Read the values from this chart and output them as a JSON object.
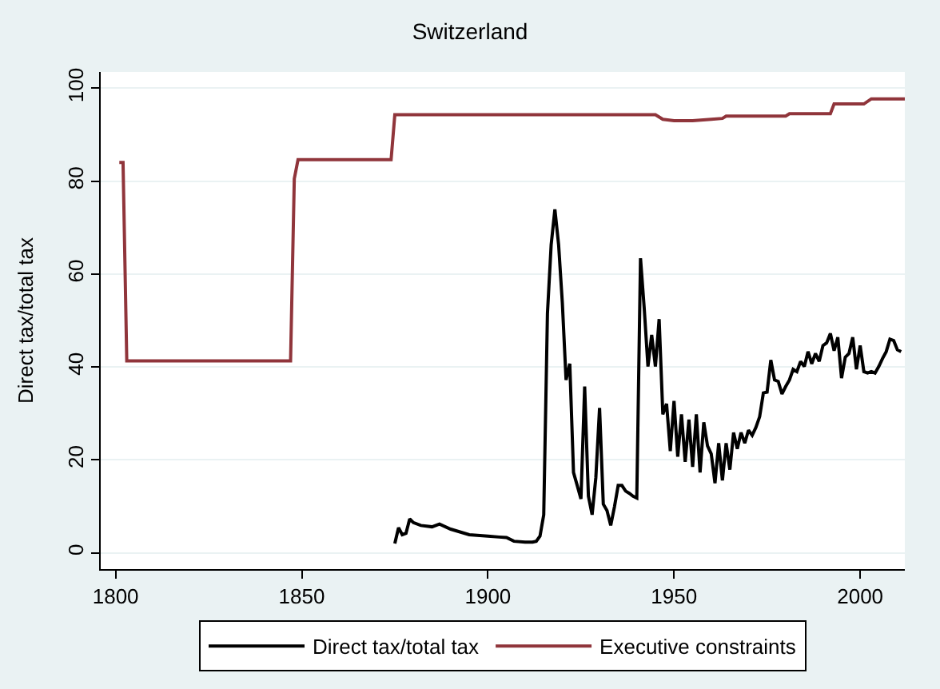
{
  "chart_data": {
    "type": "line",
    "title": "Switzerland",
    "ylabel": "Direct tax/total tax",
    "xlim": [
      1796,
      2012
    ],
    "xticks": [
      1800,
      1850,
      1900,
      1950,
      2000
    ],
    "ylim": [
      -3.5,
      103.5
    ],
    "yticks": [
      0,
      20,
      40,
      60,
      80,
      100
    ],
    "grid": "y",
    "legend": "bottom",
    "series": [
      {
        "name": "Direct tax/total tax",
        "color": "#000000",
        "x": [
          1875,
          1876,
          1877,
          1878,
          1879,
          1880,
          1882,
          1885,
          1887,
          1890,
          1895,
          1900,
          1903,
          1905,
          1907,
          1910,
          1912,
          1913,
          1914,
          1915,
          1916,
          1917,
          1918,
          1919,
          1920,
          1921,
          1922,
          1923,
          1924,
          1925,
          1926,
          1927,
          1928,
          1929,
          1930,
          1931,
          1932,
          1933,
          1934,
          1935,
          1936,
          1937,
          1938,
          1939,
          1940,
          1941,
          1942,
          1943,
          1944,
          1945,
          1946,
          1947,
          1948,
          1949,
          1950,
          1951,
          1952,
          1953,
          1954,
          1955,
          1956,
          1957,
          1958,
          1959,
          1960,
          1961,
          1962,
          1963,
          1964,
          1965,
          1966,
          1967,
          1968,
          1969,
          1970,
          1971,
          1972,
          1973,
          1974,
          1975,
          1976,
          1977,
          1978,
          1979,
          1980,
          1981,
          1982,
          1983,
          1984,
          1985,
          1986,
          1987,
          1988,
          1989,
          1990,
          1991,
          1992,
          1993,
          1994,
          1995,
          1996,
          1997,
          1998,
          1999,
          2000,
          2001,
          2002,
          2003,
          2004,
          2005,
          2006,
          2007,
          2008,
          2009,
          2010,
          2011
        ],
        "values": [
          2,
          5.4,
          3.9,
          4.2,
          7.3,
          6.5,
          5.9,
          5.6,
          6.2,
          5.1,
          3.9,
          3.6,
          3.4,
          3.3,
          2.5,
          2.3,
          2.3,
          2.5,
          3.6,
          8.2,
          51.5,
          66.3,
          73.9,
          66.3,
          53.8,
          37.2,
          40.7,
          17.3,
          14.5,
          11.6,
          35.8,
          12.2,
          8.2,
          16.2,
          31.2,
          10.5,
          9.1,
          5.9,
          9.9,
          14.5,
          14.5,
          13.3,
          12.8,
          12.2,
          11.8,
          63.4,
          52.6,
          40.1,
          46.9,
          40.1,
          50.3,
          29.8,
          32.1,
          21.9,
          32.7,
          20.7,
          29.8,
          19.6,
          28.7,
          18.5,
          29.8,
          17.3,
          28.1,
          23.0,
          21.3,
          15,
          23.6,
          15.6,
          23.6,
          17.9,
          25.9,
          22.4,
          25.9,
          23.6,
          26.4,
          25.3,
          27.0,
          29.3,
          34.4,
          34.6,
          41.5,
          37.2,
          36.9,
          34.2,
          35.8,
          37.2,
          39.5,
          39.0,
          41.2,
          40.1,
          43.3,
          40.7,
          42.9,
          41.2,
          44.6,
          45.2,
          47.2,
          43.5,
          46.4,
          37.6,
          42.1,
          42.9,
          46.4,
          39.5,
          44.6,
          39.0,
          38.7,
          39.0,
          38.7,
          40.1,
          41.8,
          43.3,
          46.0,
          45.7,
          43.7,
          43.3
        ]
      },
      {
        "name": "Executive constraints",
        "color": "#90353b",
        "x": [
          1801,
          1802,
          1803,
          1847,
          1848,
          1849,
          1874,
          1875,
          1945,
          1947,
          1950,
          1955,
          1960,
          1963,
          1964,
          1980,
          1981,
          1992,
          1993,
          2001,
          2003,
          2012
        ],
        "values": [
          84,
          84,
          41.3,
          41.3,
          80.5,
          84.6,
          84.6,
          94.3,
          94.3,
          93.3,
          93,
          93,
          93.3,
          93.5,
          94,
          94,
          94.5,
          94.5,
          96.6,
          96.6,
          97.7,
          97.7
        ]
      }
    ]
  }
}
